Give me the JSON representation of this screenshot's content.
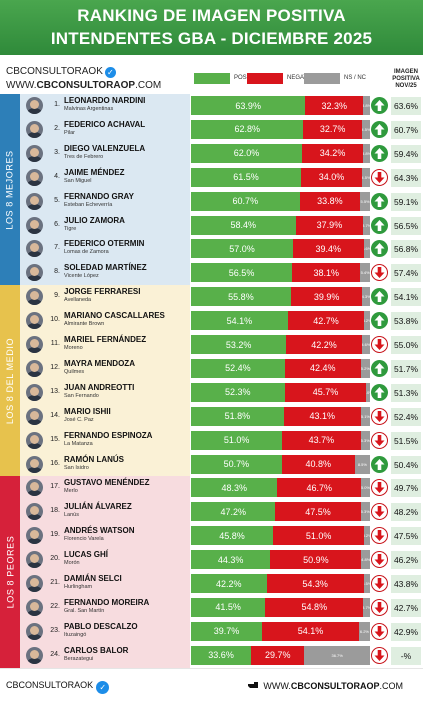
{
  "header": {
    "title_line1": "RANKING DE IMAGEN POSITIVA",
    "title_line2": "INTENDENTES GBA - DICIEMBRE 2025"
  },
  "brand": {
    "handle": "CBCONSULTORAOK",
    "website_prefix": "WWW.",
    "website_bold": "CBCONSULTORAOP",
    "website_suffix": ".COM"
  },
  "legend": {
    "positiva": "POSITIVA",
    "negativa": "NEGATIVA",
    "nsnc": "NS / NC"
  },
  "prev_column_title": [
    "IMAGEN",
    "POSITIVA",
    "NOV/25"
  ],
  "colors": {
    "header_green": "#3a9b45",
    "positive": "#58b04a",
    "negative": "#d8151c",
    "nsnc": "#9b9b9b",
    "group_mejores": "#2d7fb8",
    "group_medio": "#e7c24d",
    "group_peores": "#d6213a"
  },
  "chart_data": {
    "type": "bar",
    "stacked": true,
    "orientation": "horizontal",
    "series_names": [
      "POSITIVA",
      "NEGATIVA",
      "NS / NC"
    ],
    "groups": [
      {
        "label": "LOS 8 MEJORES",
        "from": 1,
        "to": 8
      },
      {
        "label": "LOS 8 DEL MEDIO",
        "from": 9,
        "to": 16
      },
      {
        "label": "LOS 8 PEORES",
        "from": 17,
        "to": 24
      }
    ],
    "rows": [
      {
        "rank": "1.",
        "name": "LEONARDO NARDINI",
        "muni": "Malvinas Argentinas",
        "pos": 63.9,
        "neg": 32.3,
        "ns": 3.8,
        "trend": "up",
        "prev": "63.6%"
      },
      {
        "rank": "2.",
        "name": "FEDERICO ACHAVAL",
        "muni": "Pilar",
        "pos": 62.8,
        "neg": 32.7,
        "ns": 4.5,
        "trend": "up",
        "prev": "60.7%"
      },
      {
        "rank": "3.",
        "name": "DIEGO VALENZUELA",
        "muni": "Tres de Febrero",
        "pos": 62.0,
        "neg": 34.2,
        "ns": 3.8,
        "trend": "up",
        "prev": "59.4%"
      },
      {
        "rank": "4.",
        "name": "JAIME MÉNDEZ",
        "muni": "San Miguel",
        "pos": 61.5,
        "neg": 34.0,
        "ns": 4.5,
        "trend": "down",
        "prev": "64.3%"
      },
      {
        "rank": "5.",
        "name": "FERNANDO GRAY",
        "muni": "Esteban Echeverría",
        "pos": 60.7,
        "neg": 33.8,
        "ns": 5.5,
        "trend": "up",
        "prev": "59.1%"
      },
      {
        "rank": "6.",
        "name": "JULIO ZAMORA",
        "muni": "Tigre",
        "pos": 58.4,
        "neg": 37.9,
        "ns": 3.7,
        "trend": "up",
        "prev": "56.5%"
      },
      {
        "rank": "7.",
        "name": "FEDERICO OTERMIN",
        "muni": "Lomas de Zamora",
        "pos": 57.0,
        "neg": 39.4,
        "ns": 3.6,
        "trend": "up",
        "prev": "56.8%"
      },
      {
        "rank": "8.",
        "name": "SOLEDAD MARTÍNEZ",
        "muni": "Vicente López",
        "pos": 56.5,
        "neg": 38.1,
        "ns": 5.4,
        "trend": "down",
        "prev": "57.4%"
      },
      {
        "rank": "9.",
        "name": "JORGE FERRARESI",
        "muni": "Avellaneda",
        "pos": 55.8,
        "neg": 39.9,
        "ns": 4.3,
        "trend": "up",
        "prev": "54.1%"
      },
      {
        "rank": "10.",
        "name": "MARIANO CASCALLARES",
        "muni": "Almirante Brown",
        "pos": 54.1,
        "neg": 42.7,
        "ns": 3.2,
        "trend": "up",
        "prev": "53.8%"
      },
      {
        "rank": "11.",
        "name": "MARIEL FERNÁNDEZ",
        "muni": "Moreno",
        "pos": 53.2,
        "neg": 42.2,
        "ns": 4.6,
        "trend": "down",
        "prev": "55.0%"
      },
      {
        "rank": "12.",
        "name": "MAYRA MENDOZA",
        "muni": "Quilmes",
        "pos": 52.4,
        "neg": 42.4,
        "ns": 5.2,
        "trend": "up",
        "prev": "51.7%"
      },
      {
        "rank": "13.",
        "name": "JUAN ANDREOTTI",
        "muni": "San Fernando",
        "pos": 52.3,
        "neg": 45.7,
        "ns": 2.0,
        "trend": "up",
        "prev": "51.3%"
      },
      {
        "rank": "14.",
        "name": "MARIO ISHII",
        "muni": "José C. Paz",
        "pos": 51.8,
        "neg": 43.1,
        "ns": 5.1,
        "trend": "down",
        "prev": "52.4%"
      },
      {
        "rank": "15.",
        "name": "FERNANDO ESPINOZA",
        "muni": "La Matanza",
        "pos": 51.0,
        "neg": 43.7,
        "ns": 5.3,
        "trend": "down",
        "prev": "51.5%"
      },
      {
        "rank": "16.",
        "name": "RAMÓN LANÚS",
        "muni": "San Isidro",
        "pos": 50.7,
        "neg": 40.8,
        "ns": 8.5,
        "trend": "up",
        "prev": "50.4%"
      },
      {
        "rank": "17.",
        "name": "GUSTAVO MENÉNDEZ",
        "muni": "Merlo",
        "pos": 48.3,
        "neg": 46.7,
        "ns": 5.0,
        "trend": "down",
        "prev": "49.7%"
      },
      {
        "rank": "18.",
        "name": "JULIÁN ÁLVAREZ",
        "muni": "Lanús",
        "pos": 47.2,
        "neg": 47.5,
        "ns": 5.3,
        "trend": "down",
        "prev": "48.2%"
      },
      {
        "rank": "19.",
        "name": "ANDRÉS WATSON",
        "muni": "Florencio Varela",
        "pos": 45.8,
        "neg": 51.0,
        "ns": 3.2,
        "trend": "down",
        "prev": "47.5%"
      },
      {
        "rank": "20.",
        "name": "LUCAS GHÍ",
        "muni": "Morón",
        "pos": 44.3,
        "neg": 50.9,
        "ns": 4.8,
        "trend": "down",
        "prev": "46.2%"
      },
      {
        "rank": "21.",
        "name": "DAMIÁN SELCI",
        "muni": "Hurlingham",
        "pos": 42.2,
        "neg": 54.3,
        "ns": 3.5,
        "trend": "down",
        "prev": "43.8%"
      },
      {
        "rank": "22.",
        "name": "FERNANDO MOREIRA",
        "muni": "Gral. San Martín",
        "pos": 41.5,
        "neg": 54.8,
        "ns": 3.7,
        "trend": "down",
        "prev": "42.7%"
      },
      {
        "rank": "23.",
        "name": "PABLO DESCALZO",
        "muni": "Ituzaingó",
        "pos": 39.7,
        "neg": 54.1,
        "ns": 6.2,
        "trend": "down",
        "prev": "42.9%"
      },
      {
        "rank": "24.",
        "name": "CARLOS BALOR",
        "muni": "Berazategui",
        "pos": 33.6,
        "neg": 29.7,
        "ns": 36.7,
        "trend": "down",
        "prev": "-%"
      }
    ]
  }
}
